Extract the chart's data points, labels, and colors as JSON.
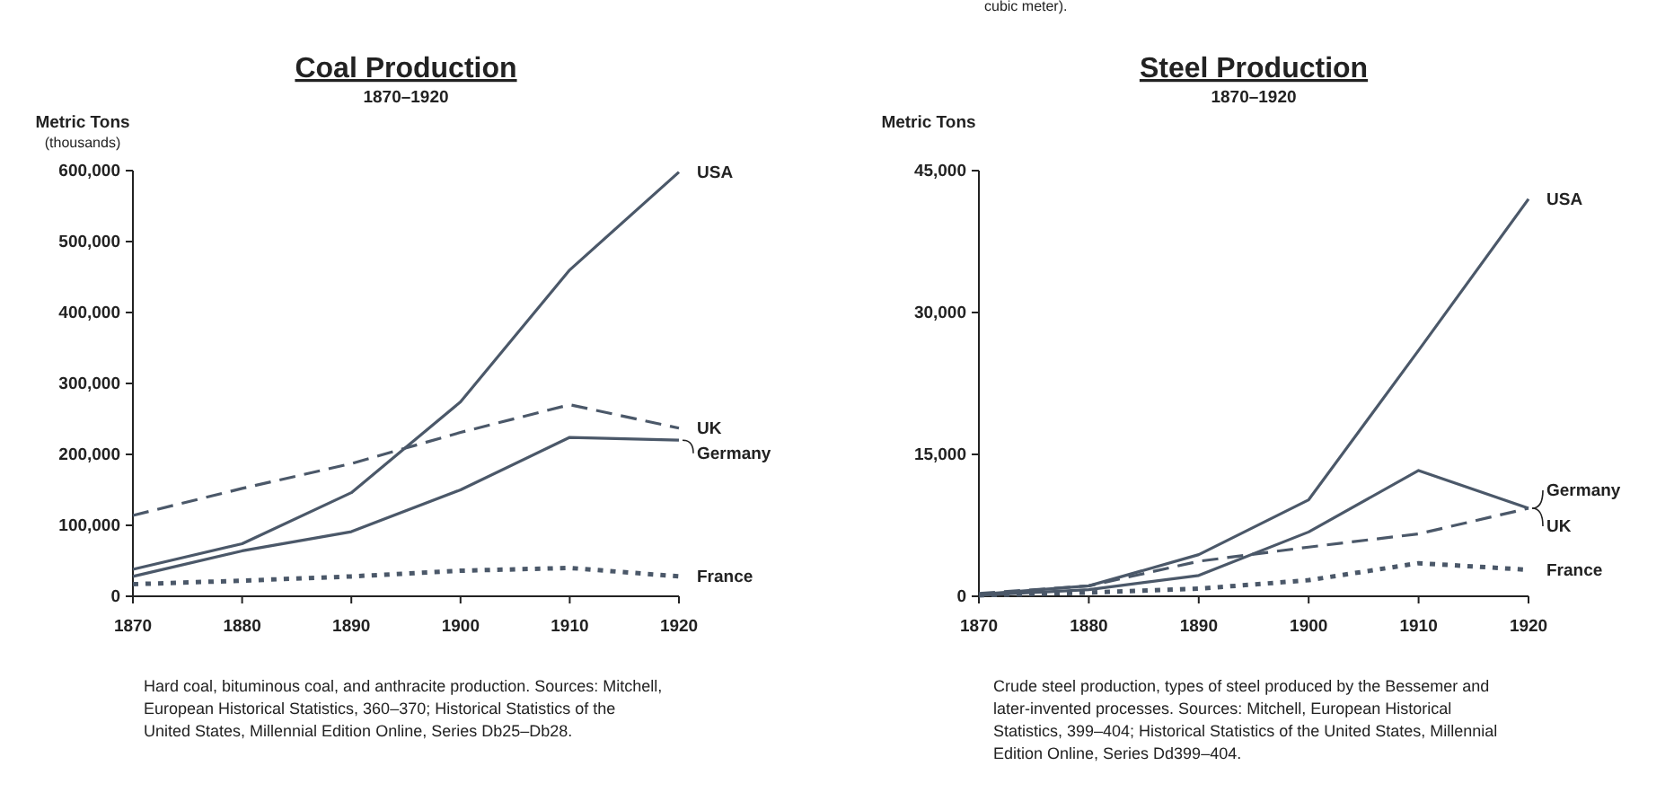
{
  "chart_data": [
    {
      "type": "line",
      "title": "Coal Production",
      "subtitle": "1870–1920",
      "ylabel": "Metric Tons\n(thousands)",
      "x": [
        1870,
        1880,
        1890,
        1900,
        1910,
        1920
      ],
      "series": [
        {
          "name": "USA",
          "color": "#4b5869",
          "line_style": "solid",
          "values": [
            38000,
            74000,
            146000,
            274000,
            460000,
            598000
          ]
        },
        {
          "name": "UK",
          "color": "#4b5869",
          "line_style": "dashed",
          "values": [
            114000,
            152000,
            187000,
            231000,
            270000,
            237000
          ]
        },
        {
          "name": "Germany",
          "color": "#4b5869",
          "line_style": "solid",
          "values": [
            28000,
            64000,
            91000,
            150000,
            224000,
            220000
          ]
        },
        {
          "name": "France",
          "color": "#4b5869",
          "line_style": "dotted",
          "values": [
            17000,
            22000,
            28000,
            36000,
            40000,
            28000
          ]
        }
      ],
      "xlim": [
        1870,
        1920
      ],
      "xticks": [
        1870,
        1880,
        1890,
        1900,
        1910,
        1920
      ],
      "ylim": [
        0,
        600000
      ],
      "yticks": [
        {
          "value": 0,
          "label": "0"
        },
        {
          "value": 100000,
          "label": "100,000"
        },
        {
          "value": 200000,
          "label": "200,000"
        },
        {
          "value": 300000,
          "label": "300,000"
        },
        {
          "value": 400000,
          "label": "400,000"
        },
        {
          "value": 500000,
          "label": "500,000"
        },
        {
          "value": 600000,
          "label": "600,000"
        }
      ],
      "grid": false,
      "legend": false,
      "marker": "none",
      "annotations": [
        "Hard coal, bituminous coal, and anthracite production. Sources: Mitchell, European Historical Statistics, 360–370; Historical Statistics of the United States, Millennial Edition Online, Series Db25–Db28."
      ]
    },
    {
      "type": "line",
      "title": "Steel Production",
      "subtitle": "1870–1920",
      "ylabel": "Metric Tons",
      "x": [
        1870,
        1880,
        1890,
        1900,
        1910,
        1920
      ],
      "series": [
        {
          "name": "USA",
          "color": "#4b5869",
          "line_style": "solid",
          "values": [
            200,
            1100,
            4400,
            10200,
            26000,
            42000
          ]
        },
        {
          "name": "Germany",
          "color": "#4b5869",
          "line_style": "solid",
          "values": [
            100,
            700,
            2200,
            6800,
            13300,
            9300
          ]
        },
        {
          "name": "UK",
          "color": "#4b5869",
          "line_style": "dashed",
          "values": [
            300,
            1100,
            3700,
            5200,
            6600,
            9300
          ]
        },
        {
          "name": "France",
          "color": "#4b5869",
          "line_style": "dotted",
          "values": [
            100,
            400,
            800,
            1700,
            3500,
            2800
          ]
        }
      ],
      "xlim": [
        1870,
        1920
      ],
      "xticks": [
        1870,
        1880,
        1890,
        1900,
        1910,
        1920
      ],
      "ylim": [
        0,
        45000
      ],
      "yticks": [
        {
          "value": 0,
          "label": "0"
        },
        {
          "value": 15000,
          "label": "15,000"
        },
        {
          "value": 30000,
          "label": "30,000"
        },
        {
          "value": 45000,
          "label": "45,000"
        }
      ],
      "grid": false,
      "legend": false,
      "marker": "none",
      "annotations": [
        "cubic meter).",
        "Crude steel production, types of steel produced by the Bessemer and later-invented processes. Sources: Mitchell, European Historical Statistics, 399–404; Historical Statistics of the United States, Millennial Edition Online, Series Dd399–404."
      ]
    }
  ]
}
